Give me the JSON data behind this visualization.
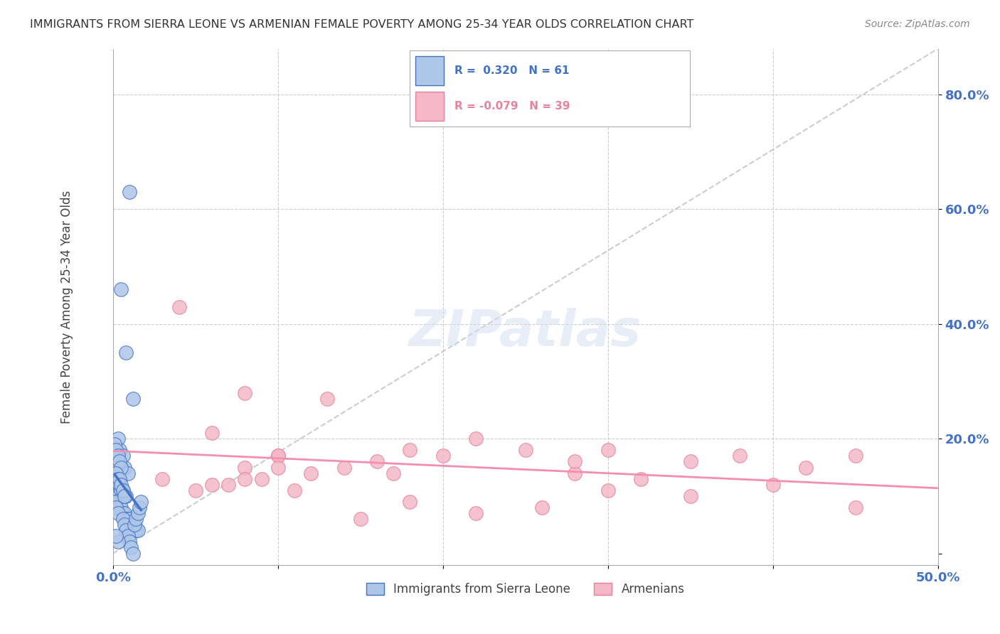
{
  "title": "IMMIGRANTS FROM SIERRA LEONE VS ARMENIAN FEMALE POVERTY AMONG 25-34 YEAR OLDS CORRELATION CHART",
  "source": "Source: ZipAtlas.com",
  "ylabel": "Female Poverty Among 25-34 Year Olds",
  "xlim": [
    0.0,
    0.5
  ],
  "ylim": [
    -0.02,
    0.88
  ],
  "yticks": [
    0.0,
    0.2,
    0.4,
    0.6,
    0.8
  ],
  "ytick_labels": [
    "",
    "20.0%",
    "40.0%",
    "60.0%",
    "80.0%"
  ],
  "xticks": [
    0.0,
    0.1,
    0.2,
    0.3,
    0.4,
    0.5
  ],
  "color_blue": "#aec6e8",
  "color_pink": "#f4b8c8",
  "color_blue_line": "#4472c4",
  "color_pink_line": "#f48fb1",
  "color_pink_edge": "#e8829a",
  "color_diag_line": "#b0b8c8",
  "watermark": "ZIPatlas",
  "blue_scatter_x": [
    0.01,
    0.005,
    0.008,
    0.012,
    0.003,
    0.004,
    0.006,
    0.007,
    0.009,
    0.002,
    0.003,
    0.004,
    0.005,
    0.006,
    0.007,
    0.008,
    0.002,
    0.003,
    0.004,
    0.005,
    0.006,
    0.007,
    0.008,
    0.009,
    0.01,
    0.011,
    0.012,
    0.013,
    0.014,
    0.015,
    0.001,
    0.002,
    0.003,
    0.004,
    0.005,
    0.002,
    0.003,
    0.004,
    0.005,
    0.006,
    0.001,
    0.002,
    0.003,
    0.006,
    0.007,
    0.008,
    0.009,
    0.01,
    0.011,
    0.012,
    0.013,
    0.014,
    0.015,
    0.016,
    0.017,
    0.004,
    0.005,
    0.006,
    0.007,
    0.003,
    0.002
  ],
  "blue_scatter_y": [
    0.63,
    0.46,
    0.35,
    0.27,
    0.2,
    0.18,
    0.17,
    0.15,
    0.14,
    0.13,
    0.12,
    0.12,
    0.11,
    0.11,
    0.1,
    0.1,
    0.09,
    0.09,
    0.08,
    0.08,
    0.07,
    0.07,
    0.06,
    0.06,
    0.06,
    0.05,
    0.05,
    0.05,
    0.04,
    0.04,
    0.19,
    0.18,
    0.17,
    0.16,
    0.15,
    0.14,
    0.13,
    0.12,
    0.11,
    0.1,
    0.09,
    0.08,
    0.07,
    0.06,
    0.05,
    0.04,
    0.03,
    0.02,
    0.01,
    0.0,
    0.05,
    0.06,
    0.07,
    0.08,
    0.09,
    0.13,
    0.12,
    0.11,
    0.1,
    0.02,
    0.03
  ],
  "pink_scatter_x": [
    0.04,
    0.08,
    0.06,
    0.13,
    0.1,
    0.16,
    0.22,
    0.18,
    0.3,
    0.28,
    0.35,
    0.42,
    0.45,
    0.08,
    0.1,
    0.12,
    0.06,
    0.08,
    0.03,
    0.05,
    0.07,
    0.09,
    0.11,
    0.14,
    0.17,
    0.2,
    0.25,
    0.28,
    0.32,
    0.38,
    0.3,
    0.35,
    0.4,
    0.22,
    0.26,
    0.15,
    0.18,
    0.45,
    0.1
  ],
  "pink_scatter_y": [
    0.43,
    0.28,
    0.21,
    0.27,
    0.17,
    0.16,
    0.2,
    0.18,
    0.18,
    0.14,
    0.16,
    0.15,
    0.08,
    0.15,
    0.17,
    0.14,
    0.12,
    0.13,
    0.13,
    0.11,
    0.12,
    0.13,
    0.11,
    0.15,
    0.14,
    0.17,
    0.18,
    0.16,
    0.13,
    0.17,
    0.11,
    0.1,
    0.12,
    0.07,
    0.08,
    0.06,
    0.09,
    0.17,
    0.15
  ]
}
